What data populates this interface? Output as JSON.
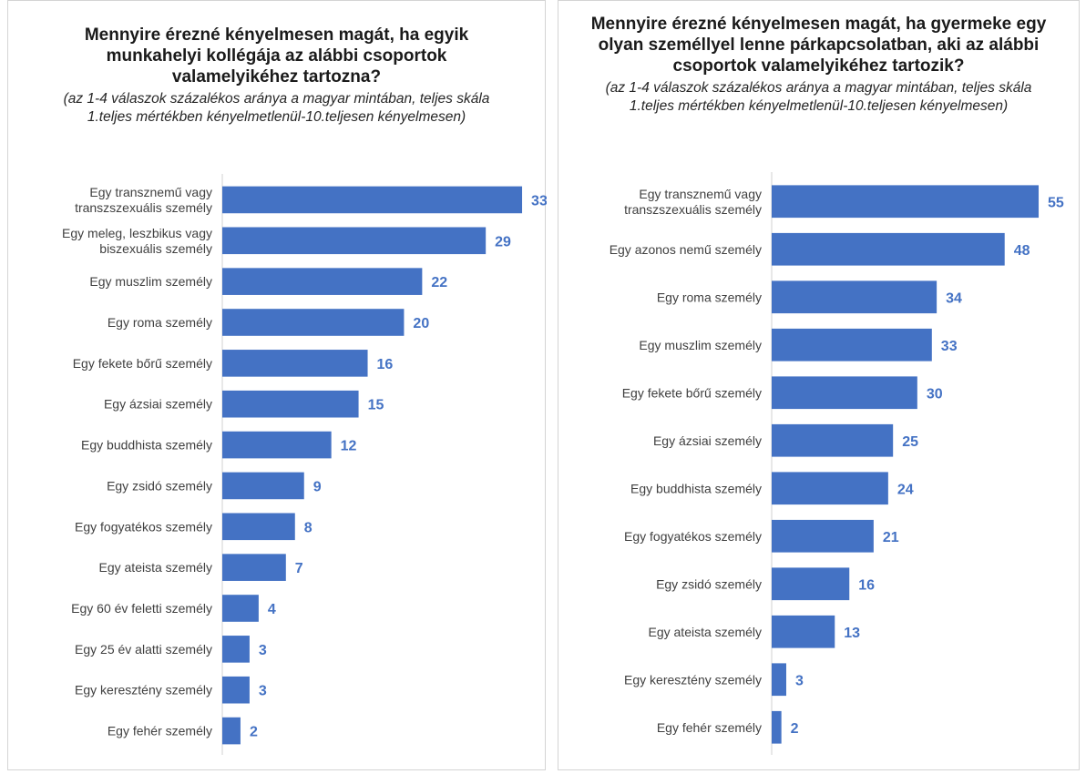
{
  "chart_data": [
    {
      "type": "bar",
      "orientation": "horizontal",
      "title": "Mennyire érezné kényelmesen magát, ha egyik munkahelyi kollégája az alábbi csoportok valamelyikéhez tartozna?",
      "subtitle": "(az 1-4 válaszok százalékos aránya a magyar mintában, teljes skála 1.teljes mértékben kényelmetlenül-10.teljesen kényelmesen)",
      "categories": [
        "Egy transznemű vagy transzszexuális személy",
        "Egy meleg, leszbikus vagy biszexuális személy",
        "Egy muszlim személy",
        "Egy roma személy",
        "Egy fekete bőrű személy",
        "Egy ázsiai személy",
        "Egy buddhista személy",
        "Egy zsidó személy",
        "Egy fogyatékos személy",
        "Egy ateista személy",
        "Egy 60 év feletti személy",
        "Egy 25 év alatti személy",
        "Egy keresztény személy",
        "Egy fehér személy"
      ],
      "values": [
        33,
        29,
        22,
        20,
        16,
        15,
        12,
        9,
        8,
        7,
        4,
        3,
        3,
        2
      ],
      "color": "#4472c4",
      "grid": false,
      "xlim": [
        0,
        35
      ]
    },
    {
      "type": "bar",
      "orientation": "horizontal",
      "title": "Mennyire érezné kényelmesen magát, ha gyermeke egy olyan személlyel lenne párkapcsolatban, aki az alábbi csoportok valamelyikéhez tartozik?",
      "subtitle": "(az 1-4 válaszok százalékos aránya a magyar mintában, teljes skála 1.teljes mértékben kényelmetlenül-10.teljesen kényelmesen)",
      "categories": [
        "Egy transznemű vagy transzszexuális személy",
        "Egy azonos nemű személy",
        "Egy roma személy",
        "Egy muszlim személy",
        "Egy fekete bőrű személy",
        "Egy ázsiai személy",
        "Egy buddhista személy",
        "Egy fogyatékos személy",
        "Egy zsidó személy",
        "Egy ateista személy",
        "Egy keresztény személy",
        "Egy fehér személy"
      ],
      "values": [
        55,
        48,
        34,
        33,
        30,
        25,
        24,
        21,
        16,
        13,
        3,
        2
      ],
      "color": "#4472c4",
      "grid": false,
      "xlim": [
        0,
        58
      ]
    }
  ]
}
